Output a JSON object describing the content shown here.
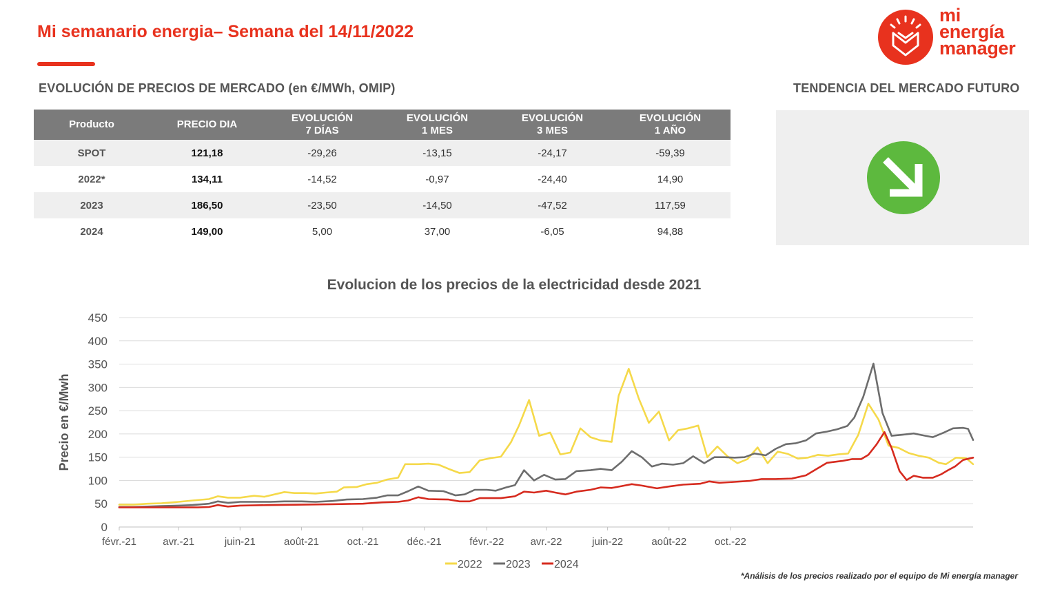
{
  "header": {
    "title": "Mi semanario energia– Semana del 14/11/2022",
    "logo": {
      "lines": [
        "mi",
        "energía",
        "manager"
      ],
      "icon": "envelope-sun-icon",
      "color": "#e8321e"
    }
  },
  "market_section": {
    "title": "EVOLUCIÓN DE PRECIOS DE MERCADO (en €/MWh, OMIP)",
    "columns": [
      [
        "Producto"
      ],
      [
        "PRECIO DIA"
      ],
      [
        "EVOLUCIÓN",
        "7 DÍAS"
      ],
      [
        "EVOLUCIÓN",
        "1 MES"
      ],
      [
        "EVOLUCIÓN",
        "3 MES"
      ],
      [
        "EVOLUCIÓN",
        "1 AÑO"
      ]
    ],
    "rows": [
      {
        "producto": "SPOT",
        "precio": "121,18",
        "d7": "-29,26",
        "m1": "-13,15",
        "m3": "-24,17",
        "y1": "-59,39"
      },
      {
        "producto": "2022*",
        "precio": "134,11",
        "d7": "-14,52",
        "m1": "-0,97",
        "m3": "-24,40",
        "y1": "14,90"
      },
      {
        "producto": "2023",
        "precio": "186,50",
        "d7": "-23,50",
        "m1": "-14,50",
        "m3": "-47,52",
        "y1": "117,59"
      },
      {
        "producto": "2024",
        "precio": "149,00",
        "d7": "5,00",
        "m1": "37,00",
        "m3": "-6,05",
        "y1": "94,88"
      }
    ]
  },
  "trend_section": {
    "title": "TENDENCIA DEL MERCADO FUTURO",
    "icon": "down-right-arrow-icon",
    "color": "#5db93e"
  },
  "chart_data": {
    "type": "line",
    "title": "Evolucion de los precios de la electricidad desde 2021",
    "ylabel": "Precio en €/Mwh",
    "ylim": [
      0,
      450
    ],
    "yticks": [
      0,
      50,
      100,
      150,
      200,
      250,
      300,
      350,
      400,
      450
    ],
    "grid": true,
    "legend_position": "bottom",
    "x_tick_labels": [
      "févr.-21",
      "avr.-21",
      "juin-21",
      "août-21",
      "oct.-21",
      "déc.-21",
      "févr.-22",
      "avr.-22",
      "juin-22",
      "août-22",
      "oct.-22"
    ],
    "x_start": "2021-02-01",
    "x_end": "2022-11-14",
    "series": [
      {
        "name": "2022",
        "color": "#f5d94a",
        "points": [
          [
            "2021-02-01",
            48
          ],
          [
            "2021-02-15",
            48
          ],
          [
            "2021-03-01",
            50
          ],
          [
            "2021-03-15",
            51
          ],
          [
            "2021-04-01",
            54
          ],
          [
            "2021-04-15",
            57
          ],
          [
            "2021-05-01",
            60
          ],
          [
            "2021-05-10",
            66
          ],
          [
            "2021-05-20",
            63
          ],
          [
            "2021-06-01",
            63
          ],
          [
            "2021-06-15",
            67
          ],
          [
            "2021-06-25",
            65
          ],
          [
            "2021-07-15",
            75
          ],
          [
            "2021-07-25",
            73
          ],
          [
            "2021-08-05",
            73
          ],
          [
            "2021-08-15",
            72
          ],
          [
            "2021-08-25",
            74
          ],
          [
            "2021-09-05",
            76
          ],
          [
            "2021-09-12",
            85
          ],
          [
            "2021-09-25",
            86
          ],
          [
            "2021-10-05",
            92
          ],
          [
            "2021-10-15",
            95
          ],
          [
            "2021-10-25",
            102
          ],
          [
            "2021-11-05",
            106
          ],
          [
            "2021-11-12",
            135
          ],
          [
            "2021-11-25",
            135
          ],
          [
            "2021-12-05",
            136
          ],
          [
            "2021-12-15",
            134
          ],
          [
            "2021-12-25",
            125
          ],
          [
            "2022-01-05",
            116
          ],
          [
            "2022-01-15",
            118
          ],
          [
            "2022-01-25",
            143
          ],
          [
            "2022-02-05",
            148
          ],
          [
            "2022-02-15",
            151
          ],
          [
            "2022-02-25",
            182
          ],
          [
            "2022-03-05",
            218
          ],
          [
            "2022-03-15",
            273
          ],
          [
            "2022-03-25",
            196
          ],
          [
            "2022-04-05",
            203
          ],
          [
            "2022-04-15",
            156
          ],
          [
            "2022-04-25",
            160
          ],
          [
            "2022-05-05",
            212
          ],
          [
            "2022-05-15",
            193
          ],
          [
            "2022-05-25",
            186
          ],
          [
            "2022-06-05",
            183
          ],
          [
            "2022-06-12",
            282
          ],
          [
            "2022-06-22",
            340
          ],
          [
            "2022-07-02",
            276
          ],
          [
            "2022-07-12",
            224
          ],
          [
            "2022-07-22",
            248
          ],
          [
            "2022-08-01",
            186
          ],
          [
            "2022-08-10",
            208
          ],
          [
            "2022-08-20",
            212
          ],
          [
            "2022-08-30",
            218
          ],
          [
            "2022-09-08",
            150
          ],
          [
            "2022-09-18",
            173
          ],
          [
            "2022-09-28",
            152
          ],
          [
            "2022-10-08",
            137
          ],
          [
            "2022-10-18",
            146
          ],
          [
            "2022-10-28",
            171
          ],
          [
            "2022-11-07",
            137
          ],
          [
            "2022-11-17",
            162
          ],
          [
            "2022-11-27",
            157
          ],
          [
            "2022-12-07",
            147
          ],
          [
            "2022-12-17",
            149
          ],
          [
            "2022-12-27",
            155
          ],
          [
            "2023-01-06",
            153
          ],
          [
            "2023-01-16",
            156
          ],
          [
            "2023-01-26",
            158
          ],
          [
            "2023-02-05",
            198
          ],
          [
            "2023-02-15",
            265
          ],
          [
            "2023-02-25",
            231
          ],
          [
            "2023-03-07",
            175
          ],
          [
            "2023-03-17",
            170
          ],
          [
            "2023-03-27",
            159
          ],
          [
            "2023-04-06",
            153
          ],
          [
            "2023-04-16",
            149
          ],
          [
            "2023-04-26",
            138
          ],
          [
            "2023-05-03",
            135
          ],
          [
            "2023-05-13",
            149
          ],
          [
            "2023-05-23",
            148
          ],
          [
            "2023-05-30",
            135
          ]
        ]
      },
      {
        "name": "2023",
        "color": "#6d6d6d",
        "points": [
          [
            "2021-02-01",
            43
          ],
          [
            "2021-02-15",
            43
          ],
          [
            "2021-03-01",
            44
          ],
          [
            "2021-03-15",
            45
          ],
          [
            "2021-04-01",
            46
          ],
          [
            "2021-04-15",
            47
          ],
          [
            "2021-05-01",
            50
          ],
          [
            "2021-05-10",
            55
          ],
          [
            "2021-05-20",
            52
          ],
          [
            "2021-06-01",
            54
          ],
          [
            "2021-06-15",
            54
          ],
          [
            "2021-07-01",
            54
          ],
          [
            "2021-07-15",
            55
          ],
          [
            "2021-08-01",
            55
          ],
          [
            "2021-08-15",
            54
          ],
          [
            "2021-09-01",
            56
          ],
          [
            "2021-09-15",
            59
          ],
          [
            "2021-10-01",
            60
          ],
          [
            "2021-10-15",
            63
          ],
          [
            "2021-10-25",
            68
          ],
          [
            "2021-11-05",
            68
          ],
          [
            "2021-11-15",
            77
          ],
          [
            "2021-11-25",
            87
          ],
          [
            "2021-12-05",
            78
          ],
          [
            "2021-12-20",
            77
          ],
          [
            "2022-01-01",
            68
          ],
          [
            "2022-01-10",
            70
          ],
          [
            "2022-01-20",
            80
          ],
          [
            "2022-02-01",
            80
          ],
          [
            "2022-02-10",
            78
          ],
          [
            "2022-02-20",
            85
          ],
          [
            "2022-03-01",
            90
          ],
          [
            "2022-03-10",
            122
          ],
          [
            "2022-03-20",
            100
          ],
          [
            "2022-03-30",
            112
          ],
          [
            "2022-04-10",
            102
          ],
          [
            "2022-04-20",
            103
          ],
          [
            "2022-05-01",
            120
          ],
          [
            "2022-05-15",
            122
          ],
          [
            "2022-05-25",
            125
          ],
          [
            "2022-06-05",
            122
          ],
          [
            "2022-06-15",
            140
          ],
          [
            "2022-06-25",
            163
          ],
          [
            "2022-07-05",
            150
          ],
          [
            "2022-07-15",
            130
          ],
          [
            "2022-07-25",
            136
          ],
          [
            "2022-08-05",
            134
          ],
          [
            "2022-08-15",
            137
          ],
          [
            "2022-08-25",
            152
          ],
          [
            "2022-09-05",
            137
          ],
          [
            "2022-09-15",
            150
          ],
          [
            "2022-09-25",
            150
          ],
          [
            "2022-10-05",
            149
          ],
          [
            "2022-10-15",
            150
          ],
          [
            "2022-10-25",
            158
          ],
          [
            "2022-11-05",
            154
          ],
          [
            "2022-11-15",
            168
          ],
          [
            "2022-11-25",
            178
          ],
          [
            "2022-12-05",
            180
          ],
          [
            "2022-12-15",
            186
          ],
          [
            "2022-12-25",
            201
          ],
          [
            "2023-01-05",
            205
          ],
          [
            "2023-01-15",
            210
          ],
          [
            "2023-01-25",
            217
          ],
          [
            "2023-02-01",
            235
          ],
          [
            "2023-02-10",
            280
          ],
          [
            "2023-02-20",
            351
          ],
          [
            "2023-03-01",
            245
          ],
          [
            "2023-03-10",
            196
          ],
          [
            "2023-03-20",
            198
          ],
          [
            "2023-04-01",
            201
          ],
          [
            "2023-04-10",
            197
          ],
          [
            "2023-04-20",
            193
          ],
          [
            "2023-05-01",
            203
          ],
          [
            "2023-05-10",
            212
          ],
          [
            "2023-05-20",
            213
          ],
          [
            "2023-05-25",
            211
          ],
          [
            "2023-05-30",
            187
          ]
        ]
      },
      {
        "name": "2024",
        "color": "#d62b1f",
        "points": [
          [
            "2021-02-01",
            42
          ],
          [
            "2021-03-01",
            42
          ],
          [
            "2021-04-01",
            42
          ],
          [
            "2021-04-20",
            42
          ],
          [
            "2021-05-01",
            43
          ],
          [
            "2021-05-10",
            47
          ],
          [
            "2021-05-20",
            44
          ],
          [
            "2021-06-01",
            46
          ],
          [
            "2021-07-01",
            47
          ],
          [
            "2021-08-01",
            48
          ],
          [
            "2021-09-01",
            49
          ],
          [
            "2021-10-01",
            50
          ],
          [
            "2021-10-20",
            53
          ],
          [
            "2021-11-05",
            54
          ],
          [
            "2021-11-15",
            57
          ],
          [
            "2021-11-25",
            64
          ],
          [
            "2021-12-05",
            60
          ],
          [
            "2021-12-25",
            59
          ],
          [
            "2022-01-05",
            55
          ],
          [
            "2022-01-15",
            55
          ],
          [
            "2022-01-25",
            62
          ],
          [
            "2022-02-15",
            62
          ],
          [
            "2022-03-01",
            66
          ],
          [
            "2022-03-10",
            76
          ],
          [
            "2022-03-20",
            74
          ],
          [
            "2022-04-01",
            78
          ],
          [
            "2022-04-10",
            74
          ],
          [
            "2022-04-20",
            70
          ],
          [
            "2022-05-01",
            76
          ],
          [
            "2022-05-15",
            80
          ],
          [
            "2022-05-25",
            85
          ],
          [
            "2022-06-05",
            84
          ],
          [
            "2022-06-15",
            88
          ],
          [
            "2022-06-25",
            92
          ],
          [
            "2022-07-05",
            89
          ],
          [
            "2022-07-20",
            83
          ],
          [
            "2022-08-01",
            87
          ],
          [
            "2022-08-15",
            91
          ],
          [
            "2022-09-01",
            93
          ],
          [
            "2022-09-10",
            98
          ],
          [
            "2022-09-20",
            95
          ],
          [
            "2022-10-05",
            97
          ],
          [
            "2022-10-20",
            99
          ],
          [
            "2022-11-01",
            103
          ],
          [
            "2022-11-15",
            103
          ],
          [
            "2022-12-01",
            104
          ],
          [
            "2022-12-15",
            111
          ],
          [
            "2022-12-25",
            124
          ],
          [
            "2023-01-05",
            138
          ],
          [
            "2023-01-20",
            142
          ],
          [
            "2023-01-30",
            146
          ],
          [
            "2023-02-08",
            146
          ],
          [
            "2023-02-15",
            155
          ],
          [
            "2023-02-23",
            177
          ],
          [
            "2023-03-03",
            204
          ],
          [
            "2023-03-10",
            170
          ],
          [
            "2023-03-18",
            120
          ],
          [
            "2023-03-25",
            101
          ],
          [
            "2023-04-01",
            110
          ],
          [
            "2023-04-10",
            106
          ],
          [
            "2023-04-20",
            106
          ],
          [
            "2023-04-28",
            113
          ],
          [
            "2023-05-05",
            122
          ],
          [
            "2023-05-12",
            130
          ],
          [
            "2023-05-20",
            144
          ],
          [
            "2023-05-30",
            149
          ]
        ]
      }
    ],
    "footnote": "*Análisis de los precios realizado por el equipo de Mi energía manager"
  }
}
